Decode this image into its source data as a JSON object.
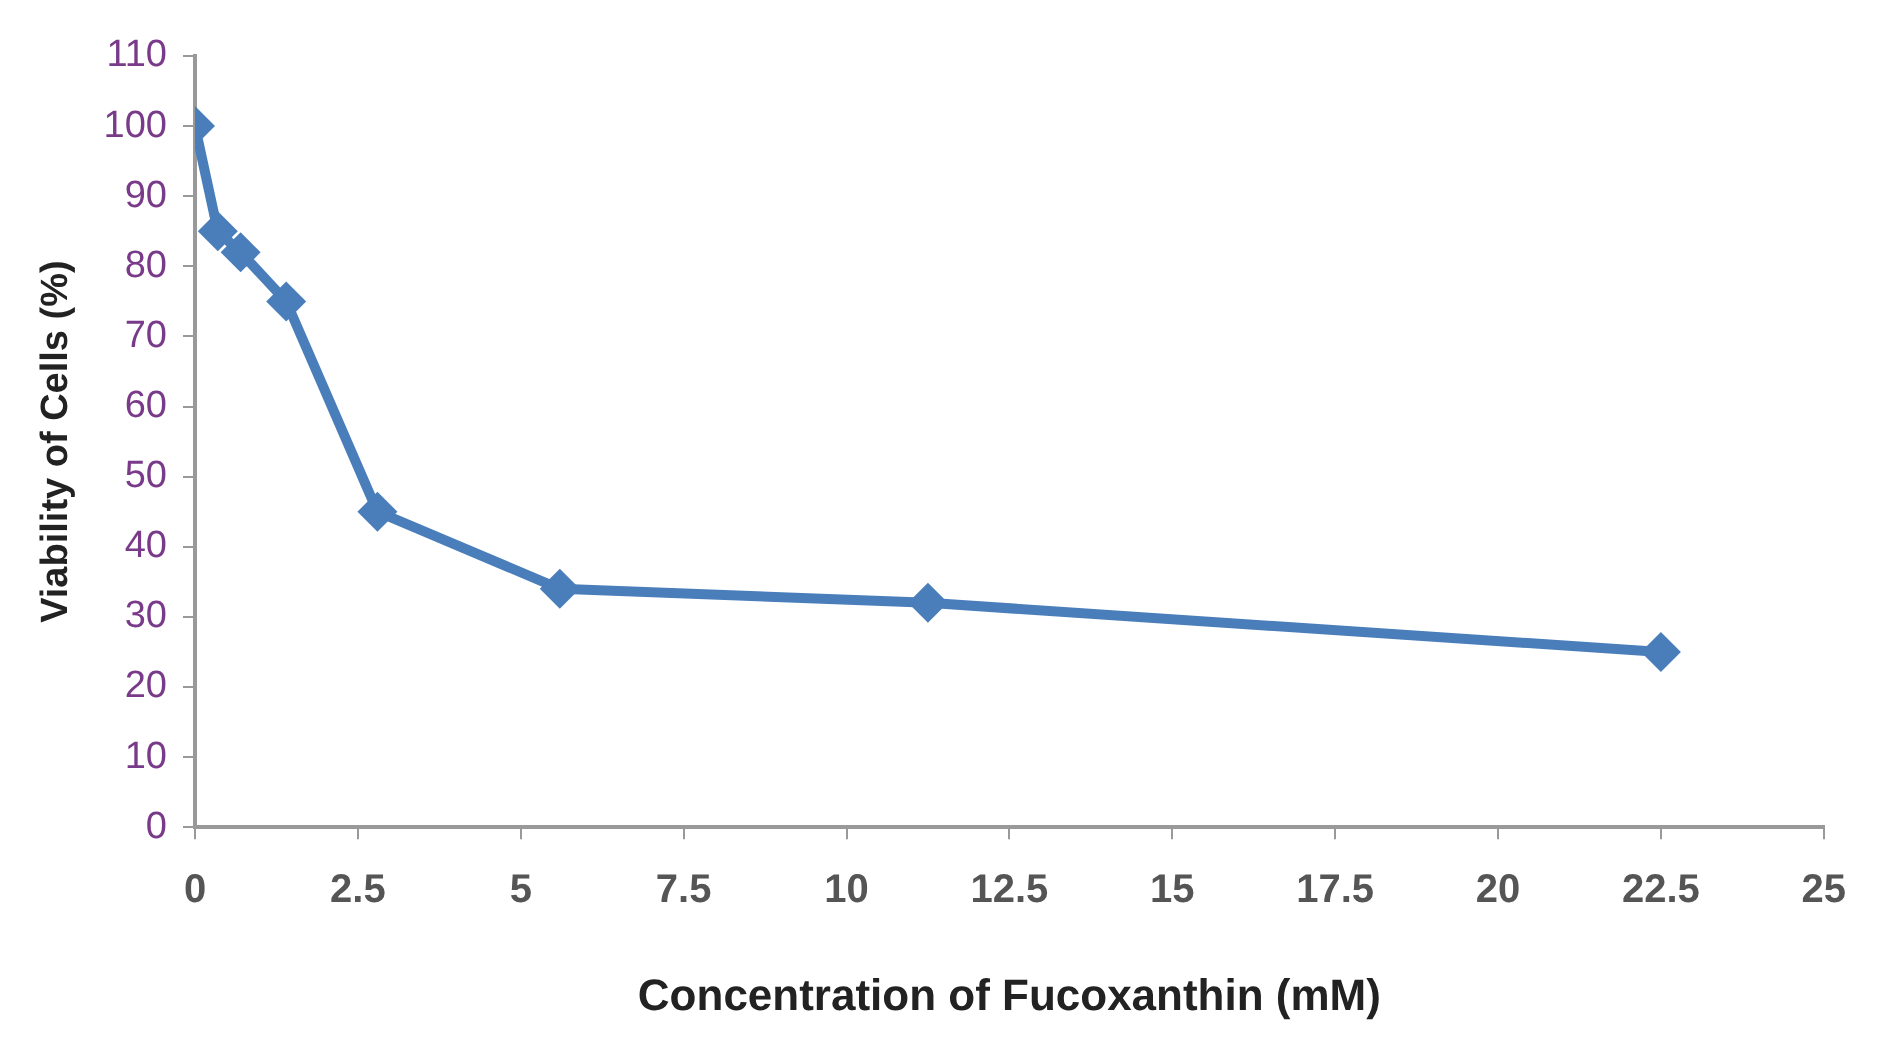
{
  "chart_data": {
    "type": "line",
    "xlabel": "Concentration of Fucoxanthin (mM)",
    "ylabel": "Viability of Cells (%)",
    "x": [
      0,
      0.35,
      0.7,
      1.4,
      2.8,
      5.6,
      11.25,
      22.5
    ],
    "series": [
      {
        "color": "#4a7ebb",
        "values": [
          100,
          85,
          82,
          75,
          45,
          34,
          32,
          25
        ]
      }
    ],
    "xlim": [
      0,
      25
    ],
    "xticks": [
      0,
      2.5,
      5,
      7.5,
      10,
      12.5,
      15,
      17.5,
      20,
      22.5,
      25
    ],
    "ylim": [
      0,
      110
    ],
    "yticks": [
      0,
      10,
      20,
      30,
      40,
      50,
      60,
      70,
      80,
      90,
      100,
      110
    ],
    "grid": false,
    "legend": false,
    "marker": "diamond",
    "line_style": "solid"
  }
}
